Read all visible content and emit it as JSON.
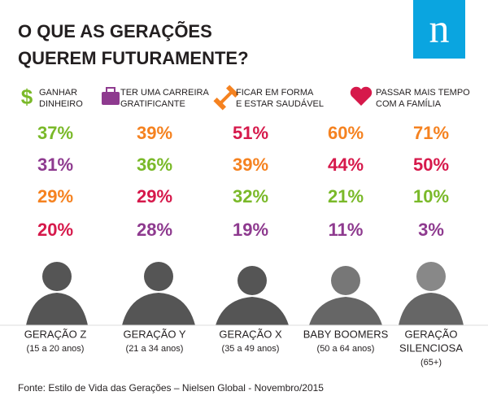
{
  "title": [
    "O QUE AS GERAÇÕES",
    "QUEREM FUTURAMENTE?"
  ],
  "logo": "n",
  "goals": [
    {
      "lines": [
        "GANHAR",
        "DINHEIRO"
      ],
      "color": "#7ab929"
    },
    {
      "lines": [
        "TER UMA CARREIRA",
        "GRATIFICANTE"
      ],
      "color": "#8e3a8f"
    },
    {
      "lines": [
        "FICAR EM FORMA",
        "E ESTAR SAUDÁVEL"
      ],
      "color": "#f58220"
    },
    {
      "lines": [
        "PASSAR MAIS TEMPO",
        "COM A FAMÍLIA"
      ],
      "color": "#d6194b"
    }
  ],
  "generations": [
    {
      "name": [
        "GERAÇÃO Z"
      ],
      "age": "(15 a 20 anos)",
      "cells": [
        {
          "text": "37%",
          "goal": 0
        },
        {
          "text": "31%",
          "goal": 1
        },
        {
          "text": "29%",
          "goal": 2
        },
        {
          "text": "20%",
          "goal": 3
        }
      ]
    },
    {
      "name": [
        "GERAÇÃO Y"
      ],
      "age": "(21 a 34 anos)",
      "cells": [
        {
          "text": "39%",
          "goal": 2
        },
        {
          "text": "36%",
          "goal": 0
        },
        {
          "text": "29%",
          "goal": 3
        },
        {
          "text": "28%",
          "goal": 1
        }
      ]
    },
    {
      "name": [
        "GERAÇÃO X"
      ],
      "age": "(35 a 49 anos)",
      "cells": [
        {
          "text": "51%",
          "goal": 3
        },
        {
          "text": "39%",
          "goal": 2
        },
        {
          "text": "32%",
          "goal": 0
        },
        {
          "text": "19%",
          "goal": 1
        }
      ]
    },
    {
      "name": [
        "BABY BOOMERS"
      ],
      "age": "(50 a 64 anos)",
      "cells": [
        {
          "text": "60%",
          "goal": 2
        },
        {
          "text": "44%",
          "goal": 3
        },
        {
          "text": "21%",
          "goal": 0
        },
        {
          "text": "11%",
          "goal": 1
        }
      ]
    },
    {
      "name": [
        "GERAÇÃO",
        "SILENCIOSA"
      ],
      "age": "(65+)",
      "cells": [
        {
          "text": "71%",
          "goal": 2
        },
        {
          "text": "50%",
          "goal": 3
        },
        {
          "text": "10%",
          "goal": 0
        },
        {
          "text": "3%",
          "goal": 1
        }
      ]
    }
  ],
  "source": "Fonte: Estilo de Vida das Gerações – Nielsen Global - Novembro/2015"
}
